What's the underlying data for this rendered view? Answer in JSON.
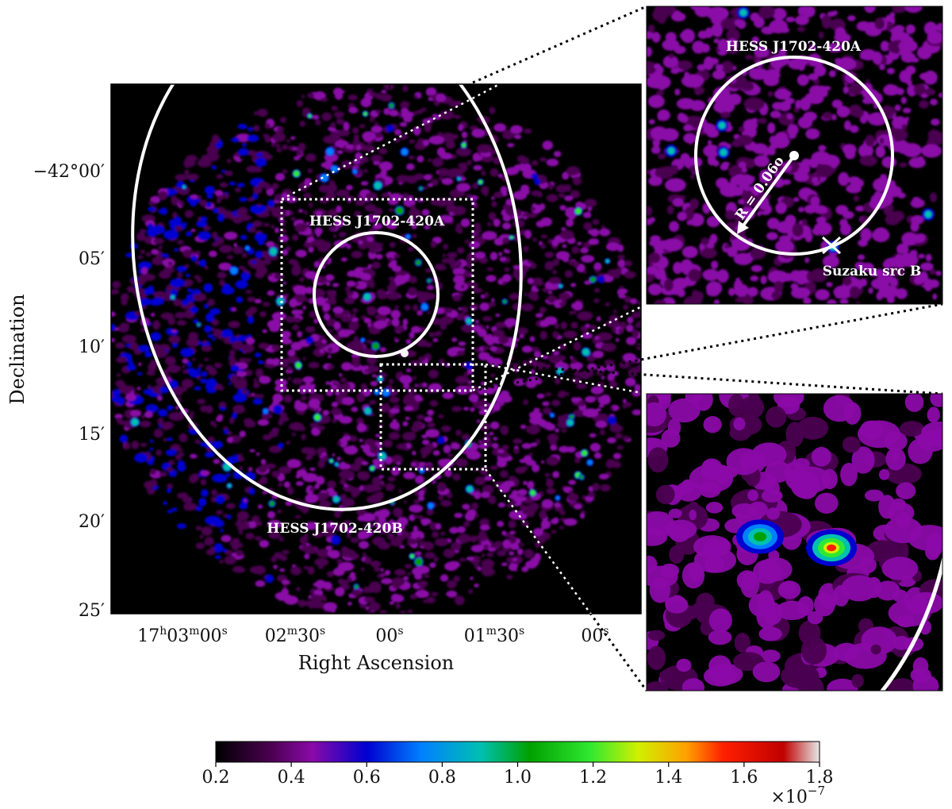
{
  "chart_data": {
    "type": "heatmap",
    "xlabel": "Right Ascension",
    "ylabel": "Declination",
    "x_ticks": [
      {
        "main": "17",
        "sup1": "h",
        "mid": "03",
        "sup2": "m",
        "tail": "00",
        "sup3": "s"
      },
      {
        "main": "02",
        "sup1": "m",
        "mid": "30",
        "sup2": "s",
        "tail": "",
        "sup3": ""
      },
      {
        "main": "00",
        "sup1": "s",
        "mid": "",
        "sup2": "",
        "tail": "",
        "sup3": ""
      },
      {
        "main": "01",
        "sup1": "m",
        "mid": "30",
        "sup2": "s",
        "tail": "",
        "sup3": ""
      },
      {
        "main": "00",
        "sup1": "s",
        "mid": "",
        "sup2": "",
        "tail": "",
        "sup3": ""
      }
    ],
    "y_ticks": [
      "−42°00′",
      "05′",
      "10′",
      "15′",
      "20′",
      "25′"
    ],
    "colorbar": {
      "min": 0.2,
      "max": 1.8,
      "ticks": [
        "0.2",
        "0.4",
        "0.6",
        "0.8",
        "1.0",
        "1.2",
        "1.4",
        "1.6",
        "1.8"
      ],
      "multiplier": "×10",
      "exponent": "−7",
      "colormap": [
        "#000000",
        "#4a0050",
        "#8a0aa8",
        "#0000d0",
        "#0080ff",
        "#00c0b0",
        "#00a000",
        "#30e830",
        "#d0f000",
        "#ffa000",
        "#ff2000",
        "#c00000",
        "#e8e8e8"
      ]
    },
    "annotations": {
      "region_a": "HESS J1702-420A",
      "region_b": "HESS J1702-420B",
      "inset_title": "HESS J1702-420A",
      "radius_label": "R = 0.06o",
      "src_label": "Suzaku src B"
    }
  }
}
